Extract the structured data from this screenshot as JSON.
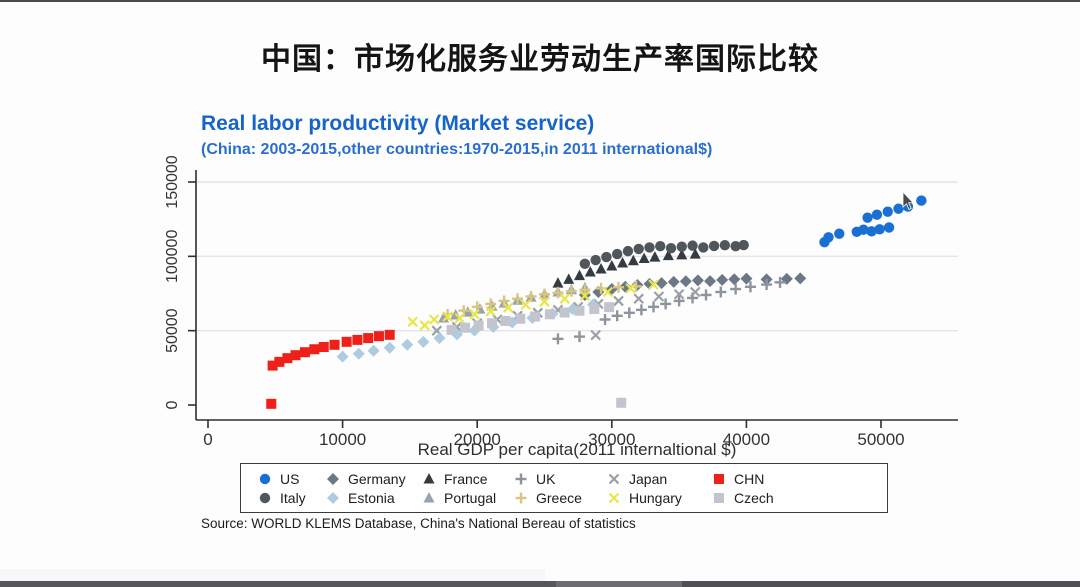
{
  "page": {
    "title": "中国：市场化服务业劳动生产率国际比较"
  },
  "chart_data": {
    "type": "scatter",
    "title": "Real labor productivity (Market service)",
    "subtitle": "(China: 2003-2015,other countries:1970-2015,in 2011 international$)",
    "xlabel": "Real GDP per capita(2011 internaltional $)",
    "ylabel": "",
    "source": "Source: WORLD KLEMS Database, China's National Bereau of statistics",
    "xlim": [
      0,
      55000
    ],
    "ylim": [
      0,
      155000
    ],
    "xticks": [
      0,
      10000,
      20000,
      30000,
      40000,
      50000
    ],
    "yticks": [
      0,
      50000,
      100000,
      150000
    ],
    "grid": "horizontal-light",
    "legend_position": "bottom-box",
    "title_color": "#1565c8",
    "series": [
      {
        "name": "US",
        "marker": "circle",
        "color": "#1a6fd4",
        "points": [
          [
            45800,
            109500
          ],
          [
            46100,
            112800
          ],
          [
            46900,
            115200
          ],
          [
            48200,
            116500
          ],
          [
            48700,
            117900
          ],
          [
            49300,
            116800
          ],
          [
            49900,
            118200
          ],
          [
            50600,
            119400
          ],
          [
            49000,
            126000
          ],
          [
            49700,
            128000
          ],
          [
            50500,
            130000
          ],
          [
            51300,
            132000
          ],
          [
            52000,
            133500
          ],
          [
            53000,
            137500
          ]
        ]
      },
      {
        "name": "Germany",
        "marker": "diamond",
        "color": "#6b7888",
        "points": [
          [
            28000,
            74000
          ],
          [
            29000,
            76000
          ],
          [
            30000,
            78000
          ],
          [
            31000,
            79500
          ],
          [
            31900,
            80700
          ],
          [
            32800,
            81500
          ],
          [
            33700,
            82000
          ],
          [
            34600,
            82800
          ],
          [
            35500,
            83200
          ],
          [
            36400,
            83800
          ],
          [
            37300,
            83300
          ],
          [
            38200,
            84200
          ],
          [
            39100,
            84600
          ],
          [
            40000,
            85000
          ],
          [
            41500,
            84500
          ],
          [
            43000,
            84800
          ],
          [
            44000,
            85200
          ]
        ]
      },
      {
        "name": "France",
        "marker": "triangle",
        "color": "#343c42",
        "points": [
          [
            26000,
            82000
          ],
          [
            26800,
            84500
          ],
          [
            27600,
            87000
          ],
          [
            28400,
            89500
          ],
          [
            29200,
            91500
          ],
          [
            30000,
            93500
          ],
          [
            30800,
            95500
          ],
          [
            31600,
            97000
          ],
          [
            32400,
            98500
          ],
          [
            33200,
            99500
          ],
          [
            34200,
            100500
          ],
          [
            35200,
            101000
          ],
          [
            36200,
            101500
          ]
        ]
      },
      {
        "name": "UK",
        "marker": "plus",
        "color": "#8d949c",
        "points": [
          [
            26000,
            44500
          ],
          [
            27600,
            46000
          ],
          [
            29500,
            57500
          ],
          [
            30400,
            60000
          ],
          [
            31300,
            62000
          ],
          [
            32200,
            64000
          ],
          [
            33100,
            66000
          ],
          [
            34000,
            68000
          ],
          [
            35000,
            70000
          ],
          [
            36000,
            72000
          ],
          [
            37000,
            74000
          ],
          [
            38100,
            76000
          ],
          [
            39200,
            78000
          ],
          [
            40300,
            79500
          ],
          [
            41500,
            81000
          ],
          [
            42500,
            82500
          ]
        ]
      },
      {
        "name": "Japan",
        "marker": "x",
        "color": "#9aa0a6",
        "points": [
          [
            17000,
            50000
          ],
          [
            18500,
            52500
          ],
          [
            20000,
            55000
          ],
          [
            21500,
            57500
          ],
          [
            23000,
            60000
          ],
          [
            24500,
            62000
          ],
          [
            26000,
            64000
          ],
          [
            27500,
            66000
          ],
          [
            29000,
            68000
          ],
          [
            30500,
            70000
          ],
          [
            32000,
            71500
          ],
          [
            33500,
            73000
          ],
          [
            35000,
            74500
          ],
          [
            36200,
            76000
          ],
          [
            28800,
            47000
          ]
        ]
      },
      {
        "name": "CHN",
        "marker": "square",
        "color": "#ee2017",
        "points": [
          [
            4700,
            800
          ],
          [
            4800,
            26500
          ],
          [
            5300,
            29000
          ],
          [
            5900,
            31500
          ],
          [
            6500,
            33500
          ],
          [
            7200,
            35500
          ],
          [
            7900,
            37500
          ],
          [
            8600,
            39000
          ],
          [
            9400,
            40500
          ],
          [
            10300,
            42500
          ],
          [
            11100,
            43800
          ],
          [
            11900,
            45000
          ],
          [
            12700,
            46300
          ],
          [
            13500,
            47200
          ]
        ]
      },
      {
        "name": "Italy",
        "marker": "circle",
        "color": "#4f565c",
        "points": [
          [
            28000,
            95000
          ],
          [
            28800,
            97500
          ],
          [
            29600,
            99500
          ],
          [
            30400,
            101500
          ],
          [
            31200,
            103500
          ],
          [
            32000,
            105000
          ],
          [
            32800,
            106000
          ],
          [
            33600,
            106800
          ],
          [
            34400,
            105500
          ],
          [
            35200,
            106500
          ],
          [
            36000,
            107200
          ],
          [
            36800,
            106000
          ],
          [
            37600,
            107000
          ],
          [
            38400,
            107500
          ],
          [
            39200,
            106800
          ],
          [
            39800,
            107600
          ]
        ]
      },
      {
        "name": "Estonia",
        "marker": "diamond",
        "color": "#aecbe2",
        "points": [
          [
            10000,
            32500
          ],
          [
            11200,
            34500
          ],
          [
            12300,
            36500
          ],
          [
            13500,
            38500
          ],
          [
            14800,
            40500
          ],
          [
            16000,
            42500
          ],
          [
            17200,
            45000
          ],
          [
            18500,
            47500
          ],
          [
            19800,
            50000
          ],
          [
            21200,
            52500
          ],
          [
            22600,
            55500
          ],
          [
            24100,
            58500
          ],
          [
            25600,
            61500
          ],
          [
            27100,
            64500
          ],
          [
            28600,
            67500
          ]
        ]
      },
      {
        "name": "Portugal",
        "marker": "triangle",
        "color": "#9aa2ac",
        "points": [
          [
            17500,
            58500
          ],
          [
            18400,
            60500
          ],
          [
            19300,
            62500
          ],
          [
            20200,
            64500
          ],
          [
            21100,
            66500
          ],
          [
            22000,
            68500
          ],
          [
            23000,
            70500
          ],
          [
            24000,
            72500
          ],
          [
            25000,
            74500
          ],
          [
            26000,
            76000
          ],
          [
            27000,
            77500
          ],
          [
            28000,
            78800
          ]
        ]
      },
      {
        "name": "Greece",
        "marker": "plus",
        "color": "#d6c583",
        "points": [
          [
            17800,
            61000
          ],
          [
            19000,
            63500
          ],
          [
            20000,
            66000
          ],
          [
            21000,
            68000
          ],
          [
            22000,
            70000
          ],
          [
            23000,
            71500
          ],
          [
            24000,
            73000
          ],
          [
            25000,
            74500
          ],
          [
            26000,
            75500
          ],
          [
            27000,
            76500
          ],
          [
            28000,
            77500
          ],
          [
            29200,
            78500
          ],
          [
            30500,
            79200
          ],
          [
            31800,
            79800
          ]
        ]
      },
      {
        "name": "Hungary",
        "marker": "x",
        "color": "#e9e64a",
        "points": [
          [
            15200,
            56000
          ],
          [
            16100,
            53500
          ],
          [
            16800,
            57500
          ],
          [
            17800,
            59500
          ],
          [
            18700,
            58500
          ],
          [
            19800,
            61000
          ],
          [
            21000,
            63000
          ],
          [
            22300,
            65500
          ],
          [
            23600,
            67500
          ],
          [
            25000,
            69500
          ],
          [
            26500,
            71500
          ],
          [
            28000,
            73500
          ],
          [
            29700,
            76000
          ],
          [
            31400,
            78500
          ],
          [
            33100,
            81000
          ]
        ]
      },
      {
        "name": "Czech",
        "marker": "square",
        "color": "#c2c5ce",
        "points": [
          [
            30700,
            1500
          ],
          [
            18100,
            50500
          ],
          [
            19100,
            52000
          ],
          [
            20100,
            53500
          ],
          [
            21100,
            55000
          ],
          [
            22100,
            56500
          ],
          [
            23200,
            58000
          ],
          [
            24300,
            59500
          ],
          [
            25400,
            61000
          ],
          [
            26500,
            62200
          ],
          [
            27600,
            63400
          ],
          [
            28700,
            64600
          ],
          [
            29800,
            65800
          ]
        ]
      }
    ]
  }
}
